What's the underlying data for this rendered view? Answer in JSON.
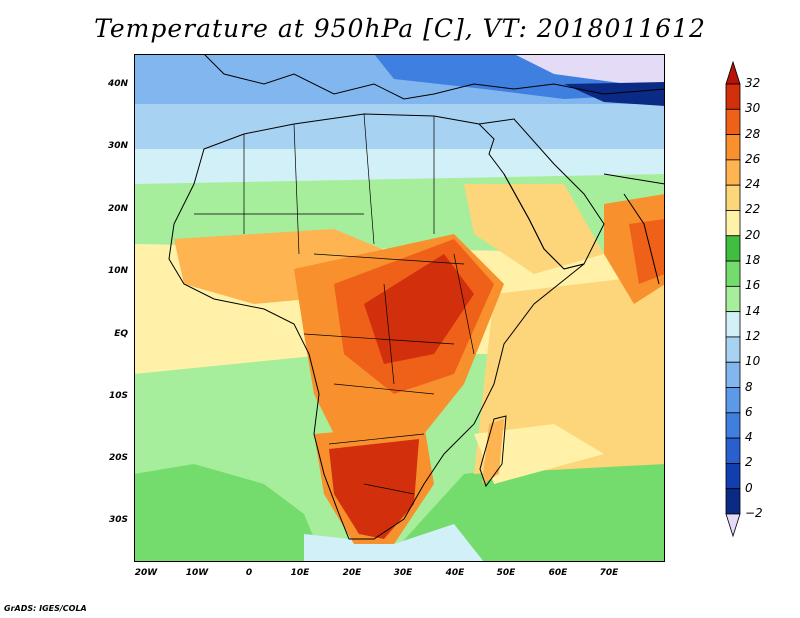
{
  "title": "Temperature at 950hPa [C], VT: 2018011612",
  "footer": "GrADS: IGES/COLA",
  "chart_data": {
    "type": "heatmap",
    "variable": "Temperature",
    "level": "950hPa",
    "units": "C",
    "valid_time": "2018011612",
    "xlim": [
      -23,
      80
    ],
    "ylim": [
      -37,
      45
    ],
    "x_ticks": [
      "20W",
      "10W",
      "0",
      "10E",
      "20E",
      "30E",
      "40E",
      "50E",
      "60E",
      "70E"
    ],
    "y_ticks": [
      "40N",
      "30N",
      "20N",
      "10N",
      "EQ",
      "10S",
      "20S",
      "30S"
    ],
    "colorbar": {
      "levels": [
        -2,
        0,
        2,
        4,
        6,
        8,
        10,
        12,
        14,
        16,
        18,
        20,
        22,
        24,
        26,
        28,
        30,
        32
      ],
      "labels": [
        "−2",
        "0",
        "2",
        "4",
        "6",
        "8",
        "10",
        "12",
        "14",
        "16",
        "18",
        "20",
        "22",
        "24",
        "26",
        "28",
        "30",
        "32"
      ],
      "colors": [
        "#e4dcf7",
        "#0a2a86",
        "#123fb0",
        "#2a5fd0",
        "#3f7fe0",
        "#5a9ae8",
        "#82b6ee",
        "#a8d2f2",
        "#d2f0f7",
        "#a6ee9c",
        "#74dc6c",
        "#3fbe3f",
        "#fff2a8",
        "#fdd57a",
        "#fdb451",
        "#f8902e",
        "#ef6018",
        "#d2300c",
        "#b81206"
      ]
    }
  }
}
